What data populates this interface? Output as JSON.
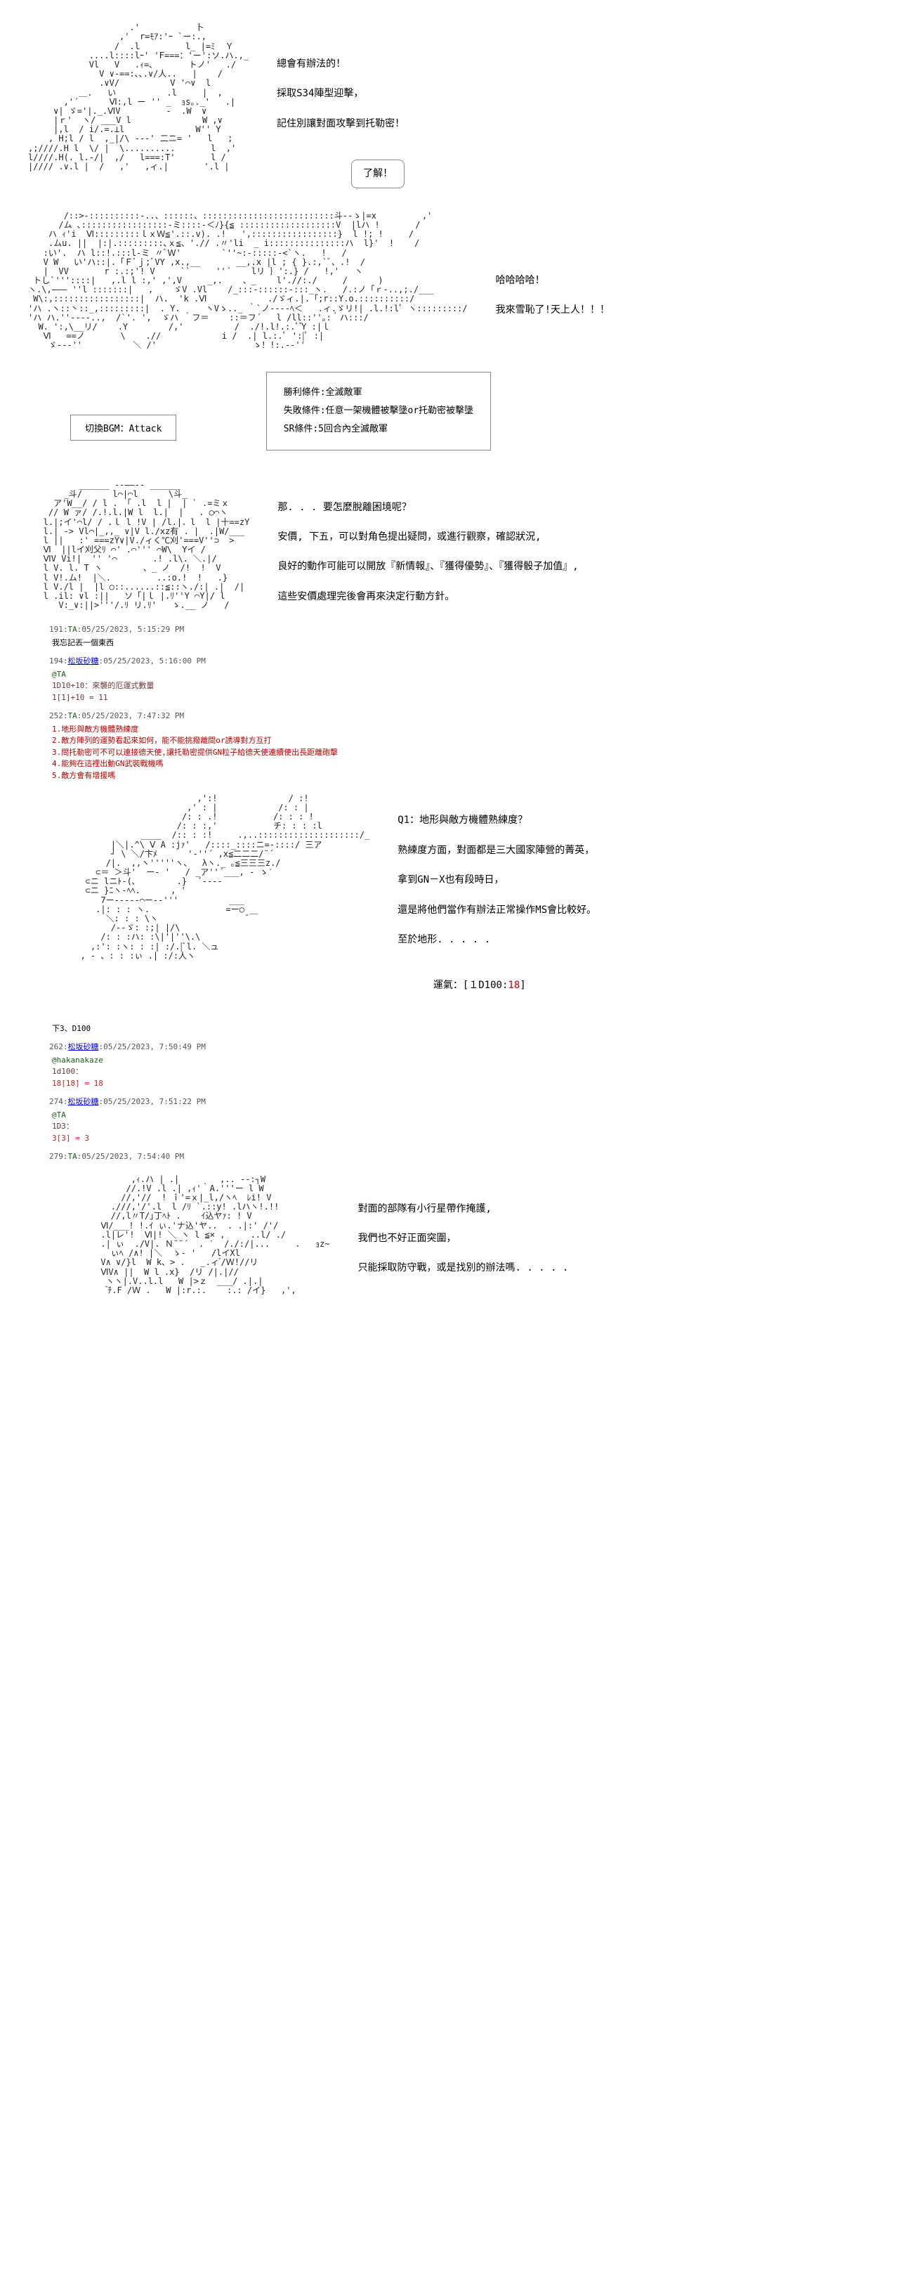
{
  "ascii1": "\n                    .'           卜\n                  ,'  r=ﾓｱ:'ｰ `ー:.,\n                 /  .l         l_ |=ﾐ  Ｙ\n            ....l::::lｰ' 'F===：'ー':ソ.ハ.,_\n            Vl   V   .ｨ=､       トノ'   ./\n              V ∨-==:､､.∨/人..   |    /\n              .∨V/          V '⌒∨  l\n          ＿.   い          .l     |  ,\n       ,'´      Ⅵ:,l ー '' _  ｮs｡._'   .|\n     ∨| ゞ='|._.ⅥV         -  .W  ∨\n     |ｒ'  ヽ/ ___V l              W ,∨\n     |,l  / i/.=.⊥l              W'' Y\n    , H;l / l  ,_|/\\ ---' 二ニ= '   l   ;\n,;////.H l  \\/ |  \\..........       l  ,'\nl////.H(. l.-/|  ,/   l===:T'       l /\n|//// .∨.l |  /   ,'   ,ィ.|       '.l |\n\n",
  "dialogue1": {
    "line1": "總會有辦法的！",
    "line2": "採取S34陣型迎擊，",
    "line3": "記住別讓對面攻擊到托勒密！",
    "reply": "了解！"
  },
  "ascii2": "\n       /::>-::::::::::-..、::::::、::::::::::::::::::::::::::斗--ゝ|=x         ,'\n      /ム ､:::::::::::::::::-ミ::::-＜ﾉ}{≦ :::::::::::::::::::V  |lハ !       /\n    ハ ｨ'i  Ⅵ:::::::::ｌｘＷ≦'.::.v). .!   ',:::::::::::::::::}  l !; !     /\n    .ムu. ||  |:|.:::::::::､ｘ≦、'.// .〃'li  _ i:::::::::::::::ハ  l}'  !    /\n   :い'.  ハ l::!.:::l‐ミ 〃ﾞＷ'        `''~:-:::::-<`ヽ.   !   /\n   V W   い'ハ::|.「Ｆﾞｊ;ﾞVY ,x.,__       __,.x |l ; { }.:,`ﾞ、.!  /\n   |  VV       r :.:;'! V     ``     ''´    lリ ｝':.} /   !,'   ヽ\n トし`'''::::|   ,.l l :,' ,',V     _,.    、_    l'.//:./     /      )\nヽ.\\,――― ''l :::::::|   ,    ゞV .Vl    /_:::-::::::-:::_ヽ.   /.:ノ「ｒ-..,;./___\n W\\:,:::::::::::::::::|  ハ.  'k .Ⅵ            ./ゞィ.|.「;r::Y.o.::::::::::/\n'ハ .ヽ::丶::_,:::::::::|  . Y.     ヽVゝ.._ ｀`ノ----ﾍ＜   .ィ.ゞリ!| .l.!:lﾟ ヽ:::::::::/\n'ハ ハ.''----..,  /`'. ',  ゞハ ｀フ＝    ::＝フ´   l /ll::''｡:｀ハ:::/\n  W. ':,\\__リ/    .Y        /,'          /  ./!.l!.:.ﾟ ゚Y :|ｌ\n   Ⅵ   ==ノ       \\    .//            i /  .| l.:.ﾟ ':|ﾟ :|\n    ゞ---''          ＼ /'                   ゝ！!:.--''\n",
  "dialogue2": {
    "line1": "哈哈哈哈！",
    "line2": "我來雪恥了!天上人！！！"
  },
  "bgm": "切換BGM：Attack",
  "conditions": {
    "win": "勝利條件:全滅敵軍",
    "lose": "失敗條件:任意一架機體被擊墬or托勒密被擊墬",
    "sr": "SR條件:5回合內全滅敵軍"
  },
  "ascii3": "\n          ______ --――-- ______\n       _斗/      l⌒|⌒l      \\斗_\n     ア'W__/ / l . 「 .l  l |  | ` .=ミｘ\n    // W ァ/ /.!.l.|W l  l.|  |   . ○⌒ヽ\n   l.|;イ'⌒l/ / .ｌ l !V | /l.|．l  l |十==zY\n   l.| -> Vl⌒|_,,_ ∨|V l./xz有 . |  .|W/___\n   l ||   :' ===zY∨|V./ィく℃刈'===V''⊃  >\n   Ⅵ  ||lイ刈父ﾘ ⌒' .⌒''' ⌒W\\  Yイ /\n   ⅥV Vi!|  '' '⌒       .! .l\\. ＼.|/\n   l V. l. T ヽ        、_ ノ  /!  !  V\n   l V!.ム!  |＼.         ..:o.!  !   .}\n   l V./l |  |l ○::......::≦::ヽ./:| .|  /|\n   l .il: ∨l :||   ソ「|ｌ |.ﾘ''Y ⌒Y|/ l\n      V:_∨:||>'''/.ﾘ リ.ﾘ'   ゝ.__ ノ   /\n",
  "dialogue3": {
    "line1": "那. . . 要怎麼脫離困境呢？",
    "line2": "安價, 下五，可以對角色提出疑問，或進行觀察，確認狀況,",
    "line3": "良好的動作可能可以開放『新情報』、『獲得優勢』、『獲得骰子加值』,",
    "line4": "這些安價處理完後會再來決定行動方針。"
  },
  "posts": [
    {
      "id": "p191",
      "num": "191",
      "name": "TA",
      "is_link": false,
      "time": "05/25/2023, 5:15:29 PM",
      "body": "我忘記丟一個東西"
    },
    {
      "id": "p194",
      "num": "194",
      "name": "松坂砂糖",
      "is_link": true,
      "time": "05/25/2023, 5:16:00 PM",
      "body_lines": [
        {
          "text": "@TA",
          "cls": "roll-blue"
        },
        {
          "text": "1D10+10：來襲的厄運式數量",
          "cls": ""
        },
        {
          "text": "1[1]+10 = 11",
          "cls": ""
        }
      ]
    },
    {
      "id": "p252",
      "num": "252",
      "name": "TA",
      "is_link": false,
      "time": "05/25/2023, 7:47:32 PM",
      "body_lines": [
        {
          "text": "1.地形與敵方機體熟練度",
          "cls": "red-line"
        },
        {
          "text": "2.敵方陣列的運勢看起來如何，能不能挑撥離間or誘導對方互打",
          "cls": "red-line"
        },
        {
          "text": "3.問托勒密可不可以連接德天使,讓托勒密提供GN粒子給德天使連續使出長距離砲擊",
          "cls": "red-line"
        },
        {
          "text": "4.能夠在這裡出動GN武裝戰機嗎",
          "cls": "red-line"
        },
        {
          "text": "5.敵方會有增援嗎",
          "cls": "red-line"
        }
      ]
    }
  ],
  "ascii4": "\n                         ,':!              / :!\n                       ,' : |            /: : |\n                      /: : .!           /: : : !\n                     /: : :,'           チ: : : :l\n              ____  /:: : :!     .,..::::::::::::::::::::/_\n        |＼|.^\\ Ⅴ A :jｧ'   /::::_::::ニ=-::::/ 三ア\n        ┘ \\ ＼/卞ﾒ      '-''´ ,x≦二二二/¨´\n       /|.  ,,ヽ'''''ヽ、  λヽ._ ｡≦三三三z./\n     ⊂＝ ＞斗'  ー- '   / _ア''´___, - ゝ′\n   ⊂ニ lニﾄ-(､        .}  ´----\n   ⊂ニ }ﾆヽ-ﾍﾍ.      , '\n      7ー-----⌒ー-‐'''          ___\n     .|: : : ヽ.               =ー○\n       ＼: : : \\ヽ                 ̄ ￣\n        /--ゞ: :;| |/\\\n      /: : :ハ: :\\|'|''\\.\\\n    ,:': :ヽ: : :| :/.|ﾞl. ＼ュ\n  , - 、: : :ぃ .| :/:人ヽ\n",
  "dialogue4": {
    "line1": "Q1：地形與敵方機體熟練度？",
    "line2": "熟練度方面，對面都是三大國家陣營的菁英，",
    "line3": "拿到GN－X也有段時日，",
    "line4": "還是將他們當作有辦法正常操作MS會比較好。",
    "line5": "至於地形. . . . .",
    "luck_label": "運氣：[１D100:",
    "luck_roll": "18",
    "luck_close": "]"
  },
  "post_footer1": "下3、D100",
  "posts2": [
    {
      "id": "p262",
      "num": "262",
      "name": "松坂砂糖",
      "is_link": true,
      "time": "05/25/2023, 7:50:49 PM",
      "body_lines": [
        {
          "text": "@hakanakaze",
          "cls": "roll-blue"
        },
        {
          "text": "1d100：",
          "cls": ""
        },
        {
          "text": "18[18] = 18",
          "cls": "roll-red"
        }
      ]
    },
    {
      "id": "p274",
      "num": "274",
      "name": "松坂砂糖",
      "is_link": true,
      "time": "05/25/2023, 7:51:22 PM",
      "body_lines": [
        {
          "text": "@TA",
          "cls": "roll-blue"
        },
        {
          "text": "1D3：",
          "cls": ""
        },
        {
          "text": "3[3] = 3",
          "cls": "roll-red"
        }
      ]
    },
    {
      "id": "p279",
      "num": "279",
      "name": "TA",
      "is_link": false,
      "time": "05/25/2023, 7:54:40 PM",
      "body": ""
    }
  ],
  "ascii5": "\n            ,ｨ.ハ | .|        ,.. --:┐W\n           //.!V .l .| ,ｨ'｀A.'''ー l W\n          //,'//  ! ｉ'=ｘ|_l,/ヽﾍ  ﾚi! V\n        .///,'/'.l  l /ﾘ `.::y! .lハヽ!.!!\n        //,l〃T/｣丁ﾍﾄ .    ｲ込ヤｧ: ! V\n      Ⅵ/___! !.ｲ ぃ.'ナ込'ヤ..  . .|:' /'/\n      .l|レ'!  Ⅵ|! ＼ ヽ l ≦× ,     ..l/ ./\n      .| ぃ  ./V|. Ｎ¨¨´  . ′  /./:/|...     .   ｮz~\n        ぃﾍ /∧! |＼  ゝ- '   /lイXl\n      V∧ ∨/}l  W k、> .   _.ィ ゙/Ｗ!//リ\n      ⅥV∧ ||  W l .x}  /リ /|.|//\n       ヽヽ|.V..l.l   W |>ｚ  ___/ .|.|\n        ゙ﾁ.F /Ｗ .   W |:r.:.    :.: /イ}   ,',\n",
  "dialogue5": {
    "line1": "對面的部隊有小行星帶作掩護,",
    "line2": "我們也不好正面突圍，",
    "line3": "只能採取防守戰，或是找別的辦法嗎. . . . ."
  },
  "colors": {
    "text": "#000000",
    "red": "#cc0000",
    "green": "#1a5e1a",
    "link": "#0000ee",
    "border": "#888888",
    "post_body": "#6b3939"
  }
}
